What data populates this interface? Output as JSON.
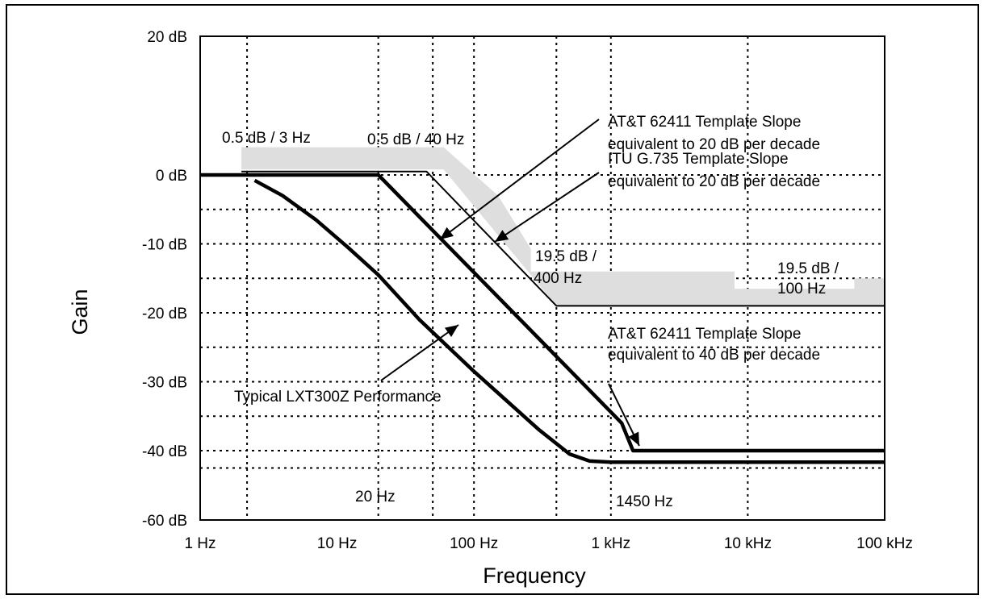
{
  "chart_data": {
    "type": "line",
    "title": "",
    "xlabel": "Frequency",
    "ylabel": "Gain",
    "x_scale": "log",
    "xlim_hz": [
      1,
      100000
    ],
    "x_ticks": [
      {
        "value": 1,
        "label": "1 Hz"
      },
      {
        "value": 10,
        "label": "10 Hz"
      },
      {
        "value": 100,
        "label": "100 Hz"
      },
      {
        "value": 1000,
        "label": "1 kHz"
      },
      {
        "value": 10000,
        "label": "10 kHz"
      },
      {
        "value": 100000,
        "label": "100 kHz"
      }
    ],
    "y_ticks": [
      {
        "value": 20,
        "label": "20 dB"
      },
      {
        "value": 0,
        "label": "0 dB"
      },
      {
        "value": -10,
        "label": "-10 dB"
      },
      {
        "value": -20,
        "label": "-20 dB"
      },
      {
        "value": -30,
        "label": "-30 dB"
      },
      {
        "value": -40,
        "label": "-40 dB"
      },
      {
        "value": -60,
        "label": "-60 dB"
      }
    ],
    "grid": "dotted",
    "series": [
      {
        "name": "Typical LXT300Z Performance",
        "color": "#000000",
        "points": [
          [
            2.5,
            -0.8
          ],
          [
            4,
            -3
          ],
          [
            7,
            -6.5
          ],
          [
            12,
            -10.5
          ],
          [
            20,
            -14.5
          ],
          [
            40,
            -21
          ],
          [
            100,
            -28.5
          ],
          [
            300,
            -37
          ],
          [
            500,
            -41
          ],
          [
            700,
            -43
          ],
          [
            1000,
            -43.3
          ],
          [
            100000,
            -43.3
          ]
        ]
      },
      {
        "name": "ITU G.735 Template",
        "color": "#000000",
        "points": [
          [
            1,
            0
          ],
          [
            20,
            0
          ],
          [
            1200,
            -36
          ],
          [
            1450,
            -40
          ],
          [
            100000,
            -40
          ]
        ]
      }
    ],
    "shaded_mask": {
      "name": "AT&T 62411 Template",
      "color": "#dedede",
      "upper": [
        [
          2,
          4
        ],
        [
          60,
          4
        ],
        [
          150,
          -3
        ],
        [
          260,
          -10.7
        ],
        [
          260,
          -14
        ],
        [
          8000,
          -14
        ],
        [
          8000,
          -16.5
        ],
        [
          60000,
          -16.5
        ],
        [
          60000,
          -15
        ],
        [
          100000,
          -15
        ]
      ],
      "lower": [
        [
          2,
          0.8
        ],
        [
          60,
          0.8
        ],
        [
          400,
          -19
        ],
        [
          100000,
          -19
        ]
      ]
    },
    "mask_edge_line": {
      "color": "#000000",
      "points": [
        [
          2,
          0.5
        ],
        [
          45,
          0.5
        ],
        [
          400,
          -19
        ],
        [
          100000,
          -19
        ]
      ]
    },
    "annotations": [
      {
        "text": "0.5 dB / 3 Hz"
      },
      {
        "text": "0.5 dB / 40 Hz"
      },
      {
        "text": "AT&T 62411 Template Slope"
      },
      {
        "text": "equivalent to 20 dB per decade"
      },
      {
        "text": "ITU G.735 Template Slope"
      },
      {
        "text": "equivalent to 20 dB per decade"
      },
      {
        "text": "19.5 dB /"
      },
      {
        "text": "400 Hz"
      },
      {
        "text": "19.5 dB /"
      },
      {
        "text": "100 Hz"
      },
      {
        "text": "AT&T 62411 Template Slope"
      },
      {
        "text": "equivalent to 40 dB per decade"
      },
      {
        "text": "Typical LXT300Z Performance"
      },
      {
        "text": "20 Hz"
      },
      {
        "text": "1450 Hz"
      }
    ]
  }
}
